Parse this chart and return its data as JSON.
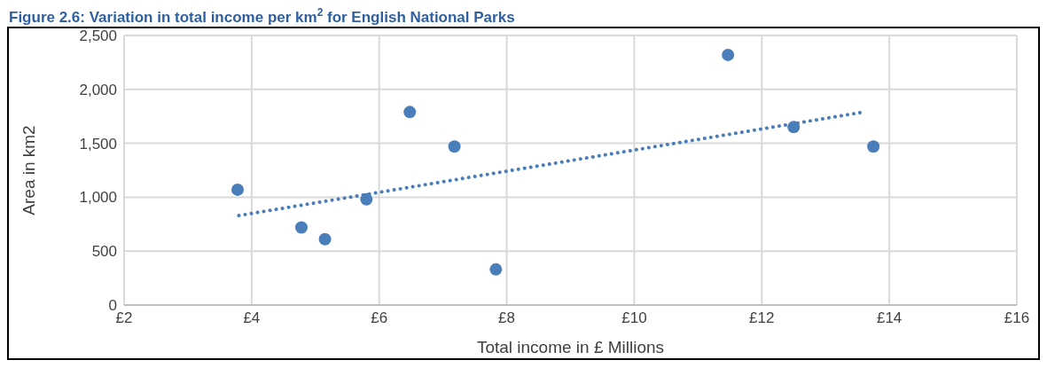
{
  "chart_data": {
    "type": "scatter",
    "title": "Figure 2.6: Variation in total income per km$^{2}$ for English National Parks",
    "xlabel": "Total income in £ Millions",
    "ylabel": "Area in km2",
    "xlim": [
      2,
      16
    ],
    "xticks": [
      {
        "value": 2,
        "label": "£2"
      },
      {
        "value": 4,
        "label": "£4"
      },
      {
        "value": 6,
        "label": "£6"
      },
      {
        "value": 8,
        "label": "£8"
      },
      {
        "value": 10,
        "label": "£10"
      },
      {
        "value": 12,
        "label": "£12"
      },
      {
        "value": 14,
        "label": "£14"
      },
      {
        "value": 16,
        "label": "£16"
      }
    ],
    "ylim": [
      0,
      2500
    ],
    "yticks": [
      0,
      500,
      {
        "value": 1000,
        "label": "1,000"
      },
      {
        "value": 1500,
        "label": "1,500"
      },
      {
        "value": 2000,
        "label": "2,000"
      },
      {
        "value": 2500,
        "label": "2,500"
      }
    ],
    "grid": true,
    "marker": "circle",
    "series": [
      {
        "color": "#4a7ebb",
        "x": [
          3.78,
          4.78,
          5.15,
          5.8,
          6.48,
          7.18,
          7.83,
          11.47,
          12.5,
          13.75
        ],
        "values": [
          1070,
          720,
          610,
          980,
          1790,
          1470,
          330,
          2320,
          1650,
          1470
        ]
      },
      {
        "type": "line",
        "color": "#4a7ebb",
        "line_style": "dotted",
        "marker": "none",
        "x": [
          3.8,
          13.6
        ],
        "values": [
          830,
          1790
        ]
      }
    ]
  }
}
